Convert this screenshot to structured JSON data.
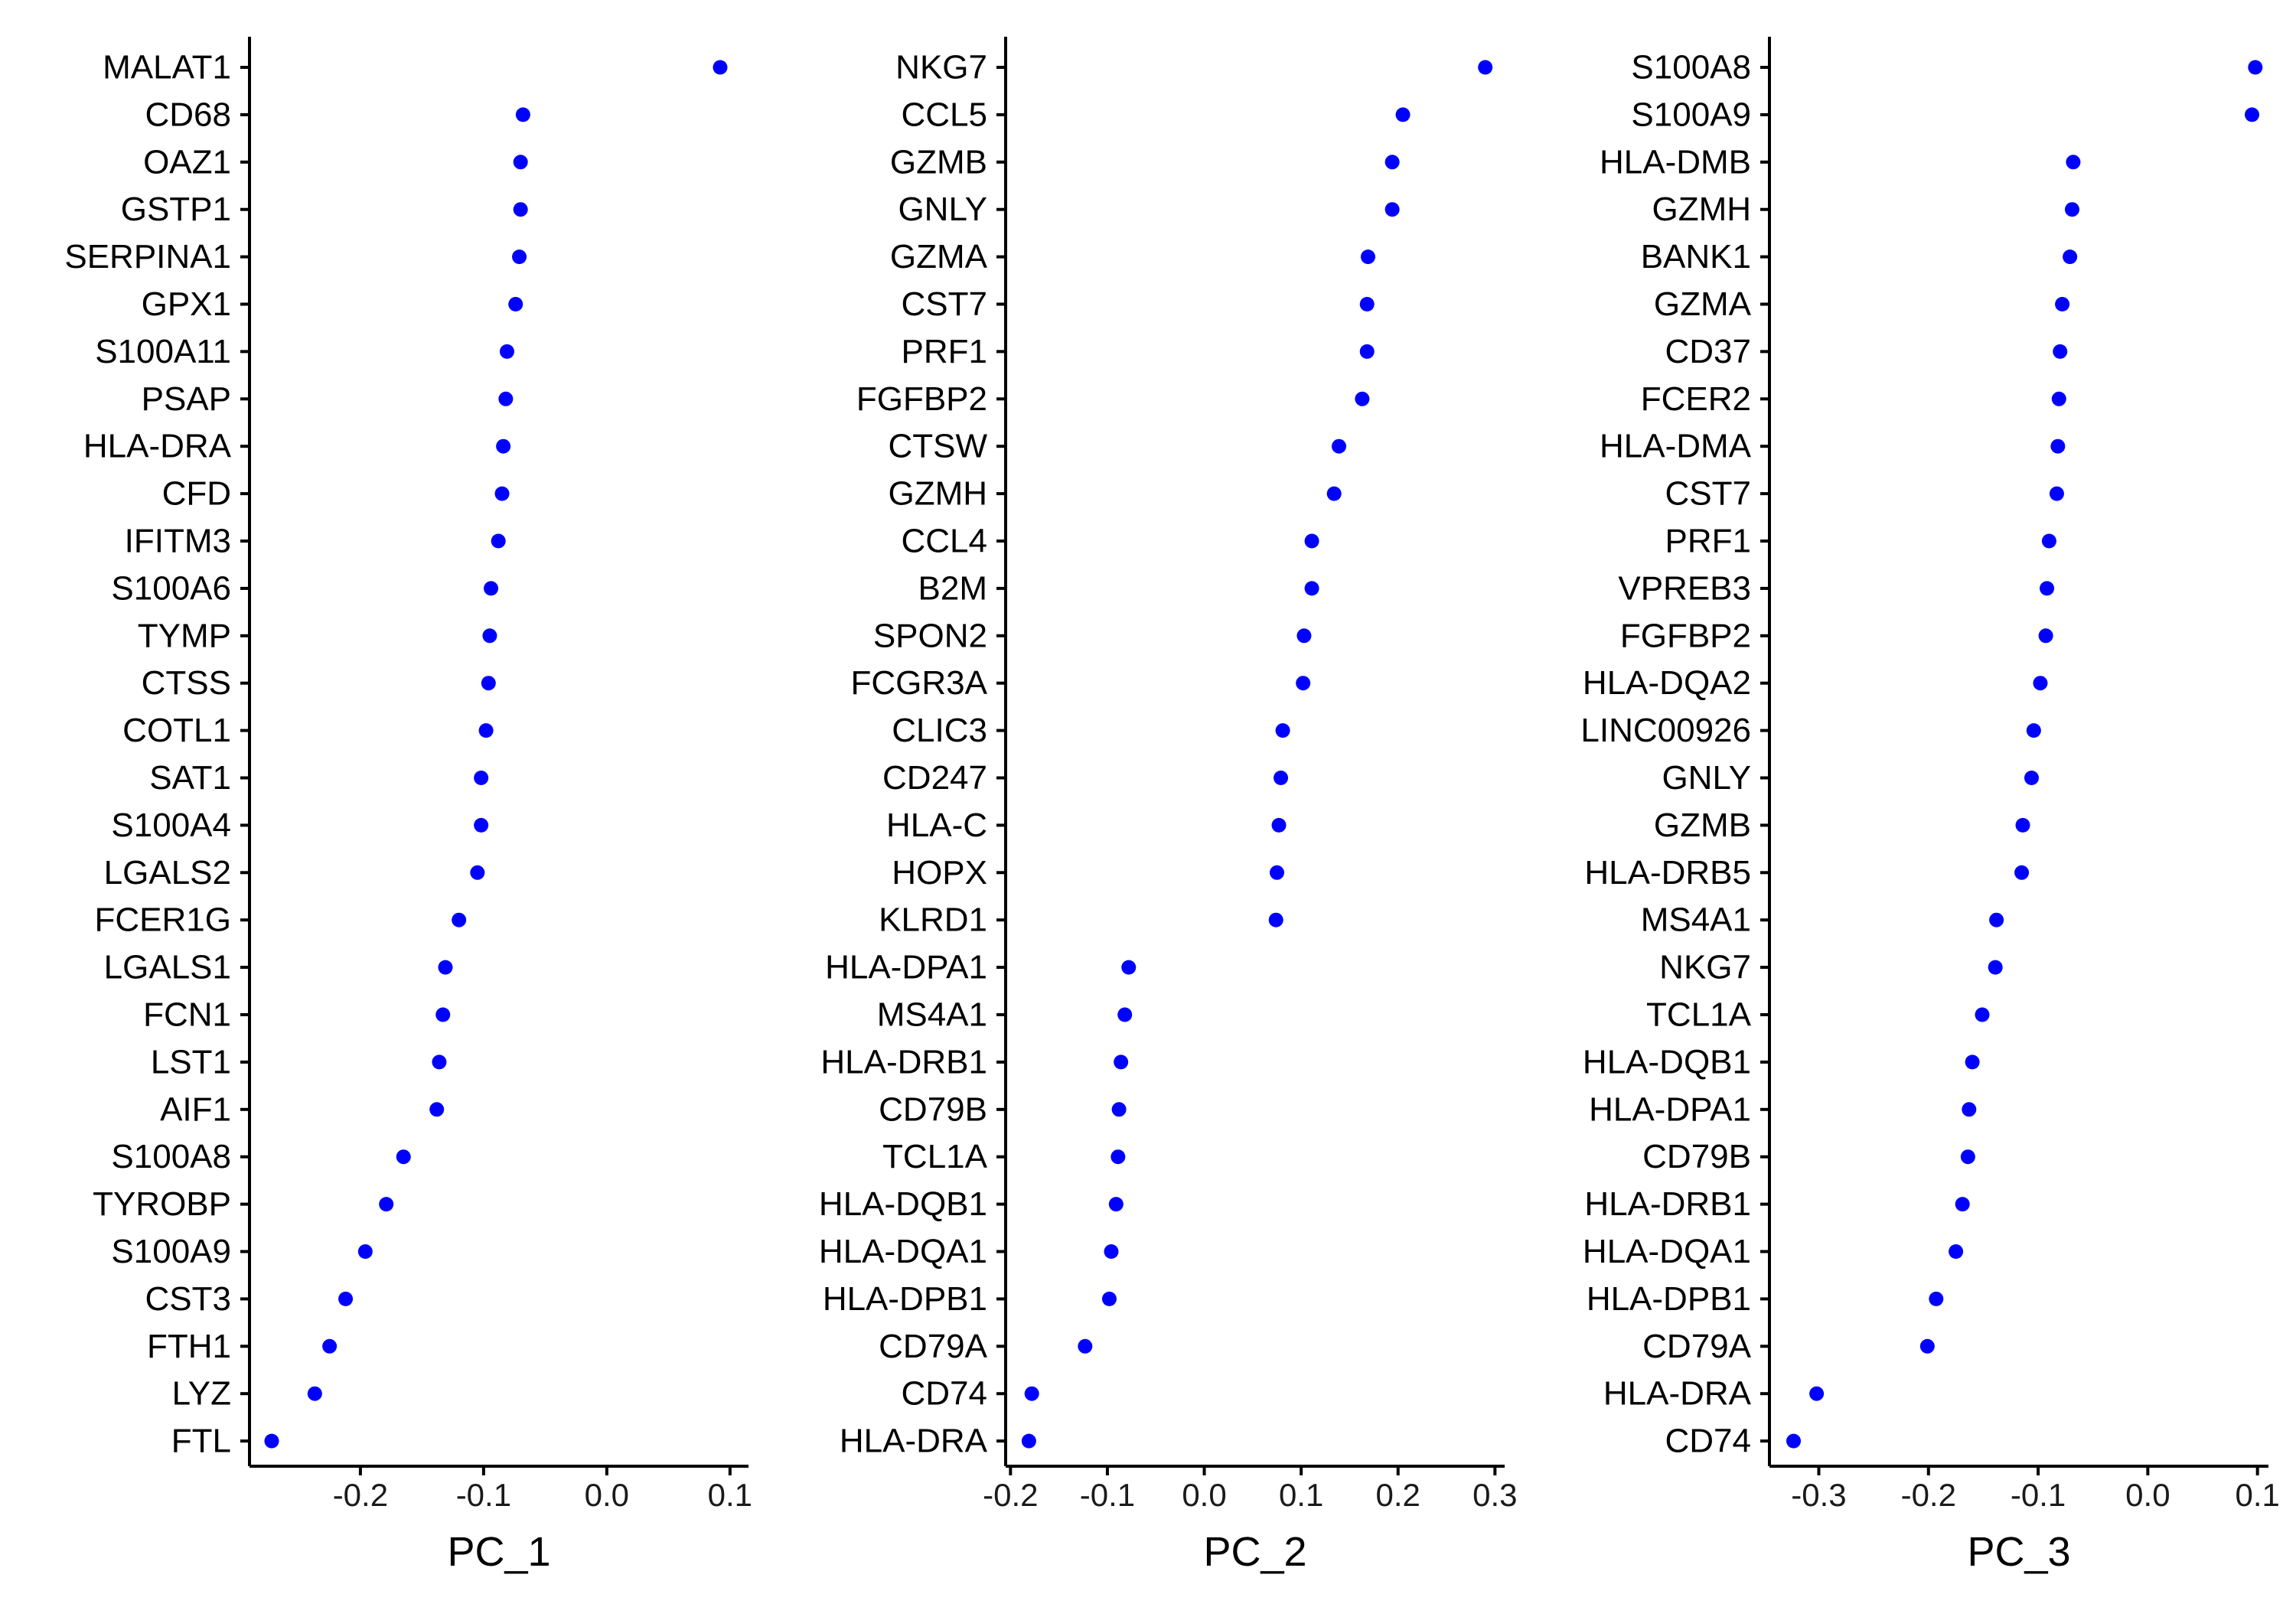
{
  "chart_data": [
    {
      "type": "scatter",
      "xlabel": "PC_1",
      "xticks": [
        -0.2,
        -0.1,
        0.0,
        0.1
      ],
      "xtick_labels": [
        "-0.2",
        "-0.1",
        "0.0",
        "0.1"
      ],
      "xlim": [
        -0.29,
        0.115
      ],
      "point_color": "#0000ff",
      "points": [
        {
          "gene": "MALAT1",
          "value": 0.092
        },
        {
          "gene": "CD68",
          "value": -0.068
        },
        {
          "gene": "OAZ1",
          "value": -0.07
        },
        {
          "gene": "GSTP1",
          "value": -0.07
        },
        {
          "gene": "SERPINA1",
          "value": -0.071
        },
        {
          "gene": "GPX1",
          "value": -0.074
        },
        {
          "gene": "S100A11",
          "value": -0.081
        },
        {
          "gene": "PSAP",
          "value": -0.082
        },
        {
          "gene": "HLA-DRA",
          "value": -0.084
        },
        {
          "gene": "CFD",
          "value": -0.085
        },
        {
          "gene": "IFITM3",
          "value": -0.088
        },
        {
          "gene": "S100A6",
          "value": -0.094
        },
        {
          "gene": "TYMP",
          "value": -0.095
        },
        {
          "gene": "CTSS",
          "value": -0.096
        },
        {
          "gene": "COTL1",
          "value": -0.098
        },
        {
          "gene": "SAT1",
          "value": -0.102
        },
        {
          "gene": "S100A4",
          "value": -0.102
        },
        {
          "gene": "LGALS2",
          "value": -0.105
        },
        {
          "gene": "FCER1G",
          "value": -0.12
        },
        {
          "gene": "LGALS1",
          "value": -0.131
        },
        {
          "gene": "FCN1",
          "value": -0.133
        },
        {
          "gene": "LST1",
          "value": -0.136
        },
        {
          "gene": "AIF1",
          "value": -0.138
        },
        {
          "gene": "S100A8",
          "value": -0.165
        },
        {
          "gene": "TYROBP",
          "value": -0.179
        },
        {
          "gene": "S100A9",
          "value": -0.196
        },
        {
          "gene": "CST3",
          "value": -0.212
        },
        {
          "gene": "FTH1",
          "value": -0.225
        },
        {
          "gene": "LYZ",
          "value": -0.237
        },
        {
          "gene": "FTL",
          "value": -0.272
        }
      ]
    },
    {
      "type": "scatter",
      "xlabel": "PC_2",
      "xticks": [
        -0.2,
        -0.1,
        0.0,
        0.1,
        0.2,
        0.3
      ],
      "xtick_labels": [
        "-0.2",
        "-0.1",
        "0.0",
        "0.1",
        "0.2",
        "0.3"
      ],
      "xlim": [
        -0.205,
        0.31
      ],
      "point_color": "#0000ff",
      "points": [
        {
          "gene": "NKG7",
          "value": 0.29
        },
        {
          "gene": "CCL5",
          "value": 0.205
        },
        {
          "gene": "GZMB",
          "value": 0.194
        },
        {
          "gene": "GNLY",
          "value": 0.194
        },
        {
          "gene": "GZMA",
          "value": 0.169
        },
        {
          "gene": "CST7",
          "value": 0.168
        },
        {
          "gene": "PRF1",
          "value": 0.168
        },
        {
          "gene": "FGFBP2",
          "value": 0.163
        },
        {
          "gene": "CTSW",
          "value": 0.139
        },
        {
          "gene": "GZMH",
          "value": 0.134
        },
        {
          "gene": "CCL4",
          "value": 0.111
        },
        {
          "gene": "B2M",
          "value": 0.111
        },
        {
          "gene": "SPON2",
          "value": 0.103
        },
        {
          "gene": "FCGR3A",
          "value": 0.102
        },
        {
          "gene": "CLIC3",
          "value": 0.081
        },
        {
          "gene": "CD247",
          "value": 0.079
        },
        {
          "gene": "HLA-C",
          "value": 0.077
        },
        {
          "gene": "HOPX",
          "value": 0.075
        },
        {
          "gene": "KLRD1",
          "value": 0.074
        },
        {
          "gene": "HLA-DPA1",
          "value": -0.078
        },
        {
          "gene": "MS4A1",
          "value": -0.082
        },
        {
          "gene": "HLA-DRB1",
          "value": -0.086
        },
        {
          "gene": "CD79B",
          "value": -0.088
        },
        {
          "gene": "TCL1A",
          "value": -0.089
        },
        {
          "gene": "HLA-DQB1",
          "value": -0.091
        },
        {
          "gene": "HLA-DQA1",
          "value": -0.096
        },
        {
          "gene": "HLA-DPB1",
          "value": -0.098
        },
        {
          "gene": "CD79A",
          "value": -0.123
        },
        {
          "gene": "CD74",
          "value": -0.178
        },
        {
          "gene": "HLA-DRA",
          "value": -0.181
        }
      ]
    },
    {
      "type": "scatter",
      "xlabel": "PC_3",
      "xticks": [
        -0.3,
        -0.2,
        -0.1,
        0.0,
        0.1
      ],
      "xtick_labels": [
        "-0.3",
        "-0.2",
        "-0.1",
        "0.0",
        "0.1"
      ],
      "xlim": [
        -0.345,
        0.11
      ],
      "point_color": "#0000ff",
      "points": [
        {
          "gene": "S100A8",
          "value": 0.098
        },
        {
          "gene": "S100A9",
          "value": 0.095
        },
        {
          "gene": "HLA-DMB",
          "value": -0.068
        },
        {
          "gene": "GZMH",
          "value": -0.069
        },
        {
          "gene": "BANK1",
          "value": -0.071
        },
        {
          "gene": "GZMA",
          "value": -0.078
        },
        {
          "gene": "CD37",
          "value": -0.08
        },
        {
          "gene": "FCER2",
          "value": -0.081
        },
        {
          "gene": "HLA-DMA",
          "value": -0.082
        },
        {
          "gene": "CST7",
          "value": -0.083
        },
        {
          "gene": "PRF1",
          "value": -0.09
        },
        {
          "gene": "VPREB3",
          "value": -0.092
        },
        {
          "gene": "FGFBP2",
          "value": -0.093
        },
        {
          "gene": "HLA-DQA2",
          "value": -0.098
        },
        {
          "gene": "LINC00926",
          "value": -0.104
        },
        {
          "gene": "GNLY",
          "value": -0.106
        },
        {
          "gene": "GZMB",
          "value": -0.114
        },
        {
          "gene": "HLA-DRB5",
          "value": -0.115
        },
        {
          "gene": "MS4A1",
          "value": -0.138
        },
        {
          "gene": "NKG7",
          "value": -0.139
        },
        {
          "gene": "TCL1A",
          "value": -0.151
        },
        {
          "gene": "HLA-DQB1",
          "value": -0.16
        },
        {
          "gene": "HLA-DPA1",
          "value": -0.163
        },
        {
          "gene": "CD79B",
          "value": -0.164
        },
        {
          "gene": "HLA-DRB1",
          "value": -0.169
        },
        {
          "gene": "HLA-DQA1",
          "value": -0.175
        },
        {
          "gene": "HLA-DPB1",
          "value": -0.193
        },
        {
          "gene": "CD79A",
          "value": -0.201
        },
        {
          "gene": "HLA-DRA",
          "value": -0.302
        },
        {
          "gene": "CD74",
          "value": -0.323
        }
      ]
    }
  ]
}
